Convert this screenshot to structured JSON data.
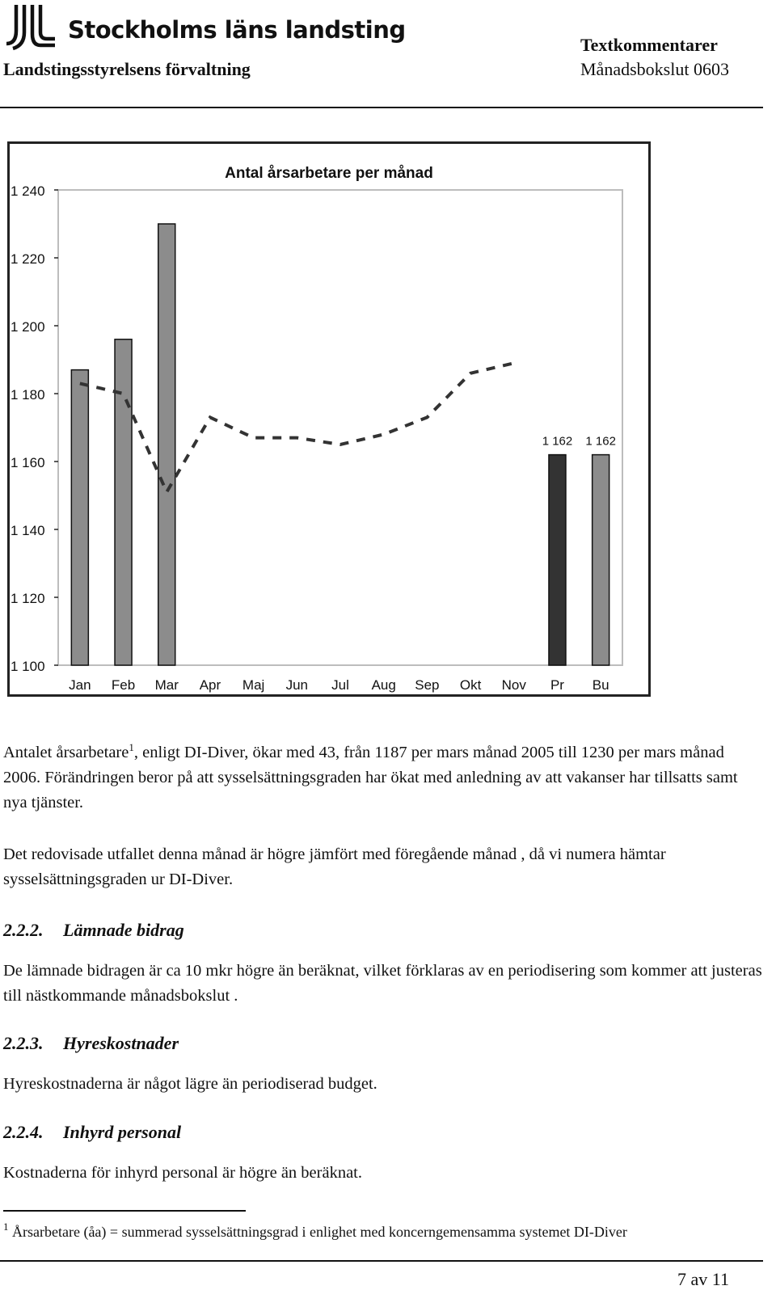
{
  "header": {
    "logo_text": "Stockholms läns landsting",
    "org": "Landstingsstyrelsens förvaltning",
    "doc_type": "Textkommentarer",
    "doc_period": "Månadsbokslut 0603"
  },
  "colors": {
    "bar_light": "#8c8c8c",
    "bar_dark": "#333333",
    "line": "#333333",
    "plot_bg": "#ffffff"
  },
  "chart_data": {
    "type": "bar",
    "title": "Antal årsarbetare per månad",
    "categories": [
      "Jan",
      "Feb",
      "Mar",
      "Apr",
      "Maj",
      "Jun",
      "Jul",
      "Aug",
      "Sep",
      "Okt",
      "Nov",
      "Pr",
      "Bu"
    ],
    "series": [
      {
        "kind": "bar",
        "values": [
          1187,
          1196,
          1230,
          null,
          null,
          null,
          null,
          null,
          null,
          null,
          null,
          1162,
          1162
        ],
        "colors": [
          "light",
          "light",
          "light",
          null,
          null,
          null,
          null,
          null,
          null,
          null,
          null,
          "dark",
          "light"
        ]
      },
      {
        "kind": "line-dashed",
        "values": [
          1183,
          1180,
          1151,
          1173,
          1167,
          1167,
          1165,
          1168,
          1173,
          1186,
          1189,
          null,
          null
        ]
      }
    ],
    "data_labels": [
      {
        "category": "Pr",
        "text": "1 162"
      },
      {
        "category": "Bu",
        "text": "1 162"
      }
    ],
    "yticks": [
      "1 100",
      "1 120",
      "1 140",
      "1 160",
      "1 180",
      "1 200",
      "1 220",
      "1 240"
    ],
    "ylim": [
      1100,
      1240
    ],
    "grid": false,
    "legend": "none"
  },
  "body": {
    "p1_a": "Antalet årsarbetare",
    "p1_sup": "1",
    "p1_b": ", enligt DI-Diver, ökar med 43, från 1187 per mars månad 2005 till 1230 per mars månad 2006. Förändringen beror på att sysselsättningsgraden har ökat med anledning av att vakanser har tillsatts samt nya tjänster.",
    "p2": "Det redovisade utfallet denna månad är högre jämfört med föregående månad , då vi numera hämtar sysselsättningsgraden ur DI-Diver.",
    "h1_num": "2.2.2.",
    "h1_title": "Lämnade bidrag",
    "p3": "De lämnade bidragen är ca 10 mkr högre än beräknat, vilket förklaras av en periodisering som kommer att justeras till nästkommande månadsbokslut .",
    "h2_num": "2.2.3.",
    "h2_title": "Hyreskostnader",
    "p4": "Hyreskostnaderna är något lägre än periodiserad budget.",
    "h3_num": "2.2.4.",
    "h3_title": "Inhyrd personal",
    "p5": "Kostnaderna för inhyrd personal är högre än beräknat."
  },
  "footnote": {
    "num": "1",
    "text": "Årsarbetare (åa) = summerad sysselsättningsgrad i enlighet med koncerngemensamma systemet DI-Diver"
  },
  "footer": {
    "page": "7 av 11"
  }
}
